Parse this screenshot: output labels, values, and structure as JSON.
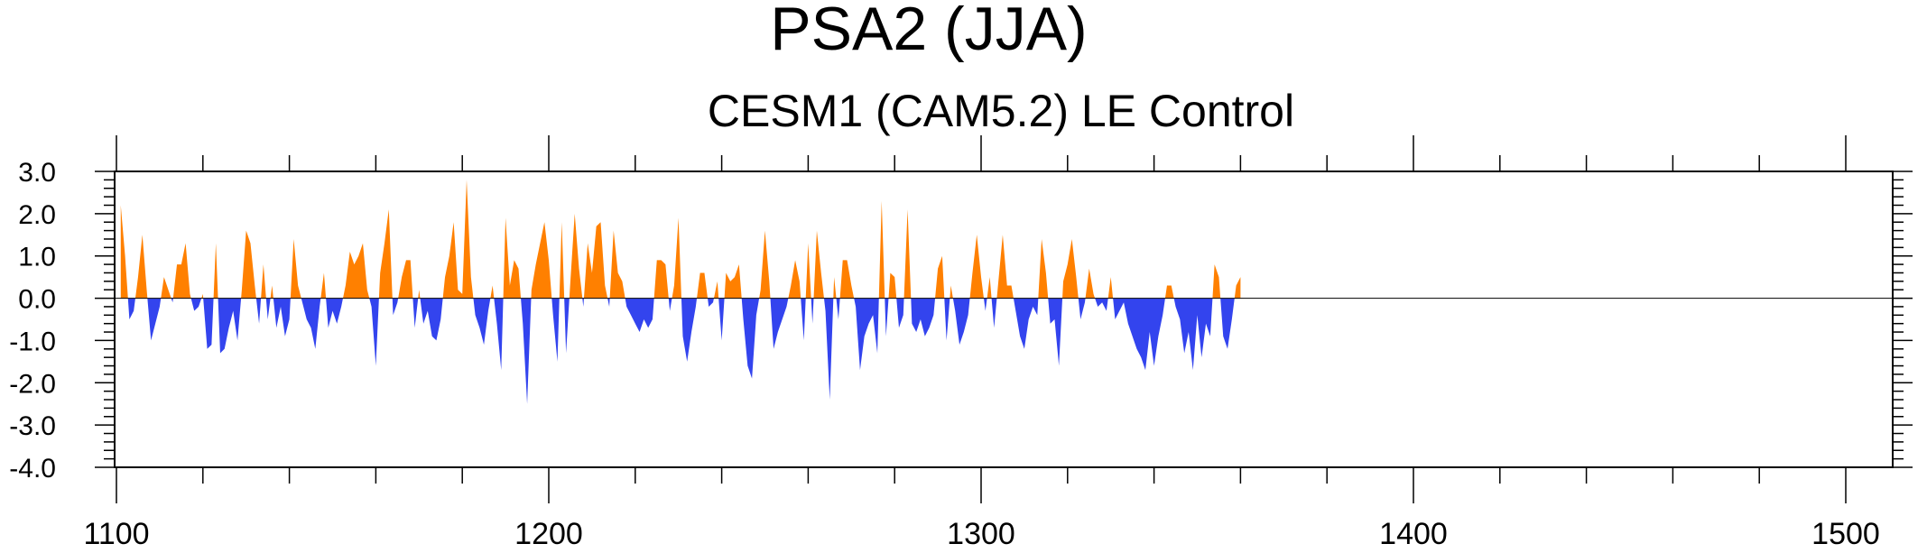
{
  "chart_data": {
    "type": "area",
    "title": "PSA2 (JJA)",
    "subtitle": "CESM1 (CAM5.2) LE Control",
    "xlabel": "",
    "ylabel": "",
    "xlim": [
      1100,
      1512
    ],
    "ylim": [
      -4.0,
      3.0
    ],
    "x_ticks": [
      1100,
      1200,
      1300,
      1400,
      1500
    ],
    "x_tick_labels": [
      "1100",
      "1200",
      "1300",
      "1400",
      "1500"
    ],
    "y_ticks": [
      3.0,
      2.0,
      1.0,
      0.0,
      -1.0,
      -2.0,
      -3.0,
      -4.0
    ],
    "y_tick_labels": [
      "3.0",
      "2.0",
      "1.0",
      "0.0",
      "-1.0",
      "-2.0",
      "-3.0",
      "-4.0"
    ],
    "positive_color": "#ff8000",
    "negative_color": "#3344ee",
    "x_start": 1101,
    "values": [
      2.2,
      1.0,
      -0.5,
      -0.3,
      0.5,
      1.5,
      0.2,
      -1.0,
      -0.6,
      -0.2,
      0.5,
      0.2,
      -0.1,
      0.8,
      0.8,
      1.3,
      0.1,
      -0.3,
      -0.2,
      0.1,
      -1.2,
      -1.1,
      1.3,
      -1.3,
      -1.2,
      -0.7,
      -0.3,
      -1.0,
      0.2,
      1.6,
      1.3,
      0.3,
      -0.6,
      0.8,
      -0.5,
      0.3,
      -0.7,
      -0.2,
      -0.9,
      -0.5,
      1.4,
      0.3,
      -0.1,
      -0.5,
      -0.7,
      -1.2,
      -0.2,
      0.6,
      -0.7,
      -0.3,
      -0.6,
      -0.2,
      0.3,
      1.1,
      0.8,
      1.0,
      1.3,
      0.2,
      -0.2,
      -1.6,
      0.6,
      1.3,
      2.1,
      -0.4,
      -0.1,
      0.5,
      0.9,
      0.9,
      -0.7,
      0.2,
      -0.6,
      -0.3,
      -0.9,
      -1.0,
      -0.5,
      0.5,
      1.0,
      1.8,
      0.2,
      0.1,
      2.8,
      0.5,
      -0.4,
      -0.7,
      -1.1,
      -0.3,
      0.3,
      -0.6,
      -1.7,
      1.9,
      0.3,
      0.9,
      0.7,
      -0.6,
      -2.5,
      0.2,
      0.8,
      1.3,
      1.8,
      0.9,
      -0.4,
      -1.5,
      1.8,
      -1.3,
      0.4,
      2.0,
      0.7,
      -0.2,
      1.3,
      0.6,
      1.7,
      1.8,
      0.3,
      -0.2,
      1.6,
      0.6,
      0.4,
      -0.2,
      -0.4,
      -0.6,
      -0.8,
      -0.5,
      -0.7,
      -0.5,
      0.9,
      0.9,
      0.8,
      -0.3,
      0.3,
      1.9,
      -0.9,
      -1.5,
      -0.8,
      -0.2,
      0.6,
      0.6,
      -0.2,
      -0.1,
      0.4,
      -1.0,
      0.6,
      0.4,
      0.5,
      0.8,
      -0.5,
      -1.6,
      -1.9,
      -0.4,
      0.2,
      1.6,
      0.4,
      -1.2,
      -0.8,
      -0.5,
      -0.2,
      0.3,
      0.9,
      0.4,
      -1.0,
      1.3,
      -0.6,
      1.6,
      0.6,
      -0.3,
      -2.4,
      0.5,
      -0.5,
      0.9,
      0.9,
      0.3,
      -0.2,
      -1.7,
      -0.9,
      -0.6,
      -0.4,
      -1.3,
      2.3,
      -0.9,
      0.6,
      0.5,
      -0.7,
      -0.4,
      2.1,
      -0.6,
      -0.8,
      -0.5,
      -0.9,
      -0.7,
      -0.4,
      0.7,
      1.0,
      -1.0,
      0.3,
      -0.3,
      -1.1,
      -0.8,
      -0.4,
      0.6,
      1.5,
      0.5,
      -0.3,
      0.5,
      -0.7,
      0.4,
      1.5,
      0.3,
      0.3,
      -0.3,
      -0.9,
      -1.2,
      -0.5,
      -0.2,
      -0.4,
      1.4,
      0.6,
      -0.6,
      -0.5,
      -1.6,
      0.4,
      0.8,
      1.4,
      0.5,
      -0.5,
      -0.1,
      0.7,
      0.1,
      -0.2,
      -0.1,
      -0.3,
      0.5,
      -0.5,
      -0.3,
      -0.1,
      -0.6,
      -0.9,
      -1.2,
      -1.4,
      -1.7,
      -0.8,
      -1.6,
      -0.9,
      -0.4,
      0.3,
      0.3,
      -0.2,
      -0.5,
      -1.3,
      -0.8,
      -1.7,
      -0.4,
      -1.4,
      -0.6,
      -0.9,
      0.8,
      0.5,
      -0.9,
      -1.2,
      -0.5,
      0.3,
      0.5
    ]
  }
}
